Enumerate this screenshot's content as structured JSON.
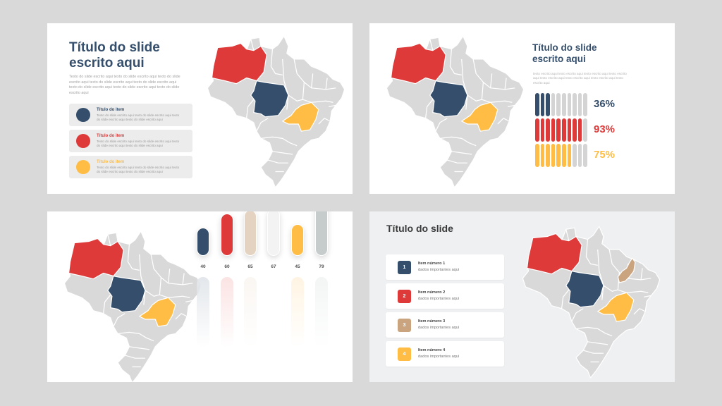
{
  "colors": {
    "navy": "#344e6b",
    "red": "#de3a3a",
    "yellow": "#ffbd45",
    "tan": "#c9a47e",
    "map_base": "#d9d9d9",
    "canvas": "#d9d9d9"
  },
  "slides": [
    {
      "title_line1": "Título do slide",
      "title_line2": "escrito aqui",
      "description": "Texto do slide escrito aqui texto do slide escrito aqui texto do slide escrito aqui texto do slide escrito aqui texto do slide escrito aqui texto do slide escrito aqui texto do slide escrito aqui texto do slide escrito aqui",
      "items": [
        {
          "title": "Título do item",
          "text": "Texto do slide escrito aqui texto do slide escrito aqui texto do slide escrito aqui texto do slide escrito aqui",
          "color": "#344e6b"
        },
        {
          "title": "Título do item",
          "text": "Texto do slide escrito aqui texto do slide escrito aqui texto do slide escrito aqui texto do slide escrito aqui",
          "color": "#de3a3a"
        },
        {
          "title": "Título do item",
          "text": "Texto do slide escrito aqui texto do slide escrito aqui texto do slide escrito aqui texto do slide escrito aqui",
          "color": "#ffbd45"
        }
      ],
      "map_highlights": {
        "amazonas": "#de3a3a",
        "mato_grosso": "#344e6b",
        "minas_gerais": "#ffbd45"
      }
    },
    {
      "title_line1": "Título do slide",
      "title_line2": "escrito aqui",
      "description": "texto escrito aqui texto escrito aqui texto escrito aqui texto escrito aqui texto escrito aqui texto escrito aqui texto escrito aqui texto escrito aqui",
      "progress_rows": [
        {
          "label": "36%",
          "value": 36,
          "filled_pips": 3,
          "total_pips": 10,
          "color": "#344e6b"
        },
        {
          "label": "93%",
          "value": 93,
          "filled_pips": 9,
          "total_pips": 10,
          "color": "#de3a3a"
        },
        {
          "label": "75%",
          "value": 75,
          "filled_pips": 7,
          "total_pips": 10,
          "color": "#ffbd45"
        }
      ],
      "map_highlights": {
        "amazonas": "#de3a3a",
        "mato_grosso": "#344e6b",
        "minas_gerais": "#ffbd45"
      }
    },
    {
      "bars": [
        {
          "label": "40",
          "value": 40,
          "color": "#344e6b",
          "track": "#e3e7eb"
        },
        {
          "label": "60",
          "value": 60,
          "color": "#de3a3a",
          "track": "#fbe3e3"
        },
        {
          "label": "65",
          "value": 65,
          "color": "#e3d3c0",
          "track": "#faf6f2"
        },
        {
          "label": "67",
          "value": 67,
          "color": "#f3f3f3",
          "track": "#ffffff"
        },
        {
          "label": "45",
          "value": 45,
          "color": "#ffbd45",
          "track": "#fff4e3"
        },
        {
          "label": "79",
          "value": 79,
          "color": "#c6cbcc",
          "track": "#f3f5f5"
        }
      ],
      "map_highlights": {
        "amazonas": "#de3a3a",
        "mato_grosso": "#344e6b",
        "minas_gerais": "#ffbd45"
      }
    },
    {
      "title": "Título do slide",
      "items": [
        {
          "number": "1",
          "title": "Item número 1",
          "subtitle": "dados importantes aqui",
          "color": "#344e6b"
        },
        {
          "number": "2",
          "title": "Item número 2",
          "subtitle": "dados importantes aqui",
          "color": "#de3a3a"
        },
        {
          "number": "3",
          "title": "Item número 3",
          "subtitle": "dados importantes aqui",
          "color": "#c9a47e"
        },
        {
          "number": "4",
          "title": "Item número 4",
          "subtitle": "dados importantes aqui",
          "color": "#ffbd45"
        }
      ],
      "map_highlights": {
        "amazonas": "#de3a3a",
        "mato_grosso": "#344e6b",
        "minas_gerais": "#ffbd45",
        "piaui": "#c9a47e"
      }
    }
  ]
}
